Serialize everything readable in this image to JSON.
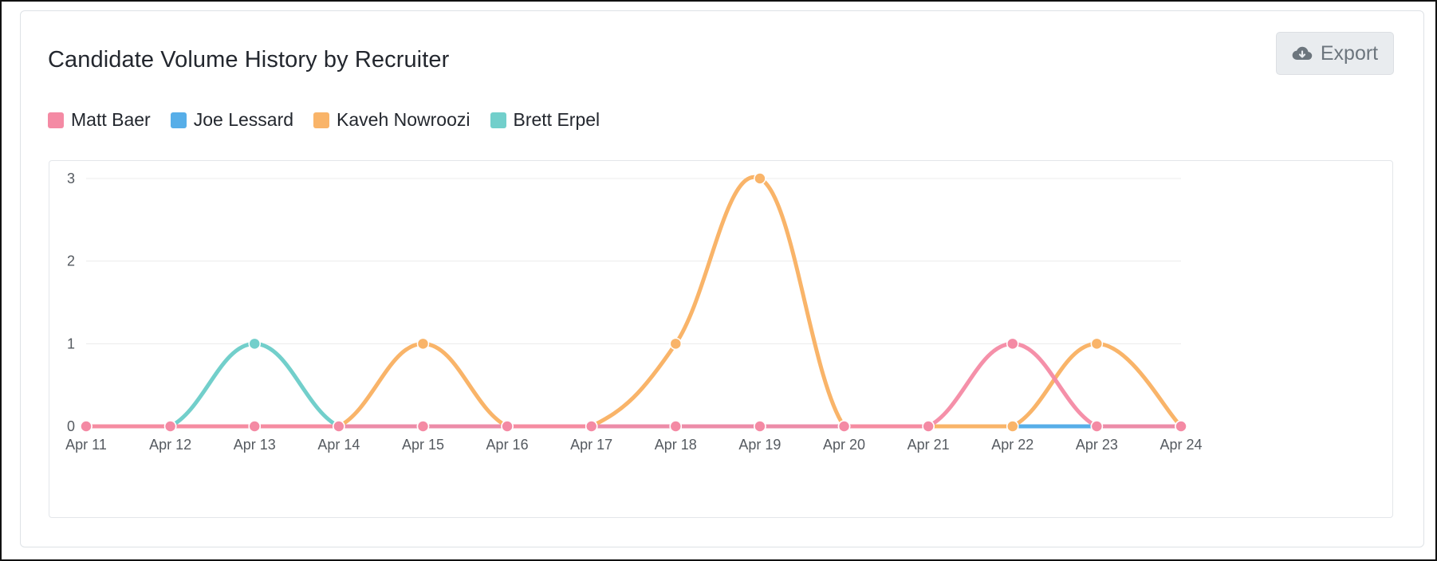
{
  "header": {
    "title": "Candidate Volume History by Recruiter",
    "export_label": "Export",
    "export_icon": "cloud-download-icon"
  },
  "colors": {
    "matt": "#f48aa4",
    "joe": "#57aee8",
    "kaveh": "#f9b469",
    "brett": "#72cfcb",
    "gridline": "#ececec",
    "button_bg": "#e9ecef"
  },
  "chart_data": {
    "type": "line",
    "smooth": true,
    "legend_position": "top-left",
    "grid": true,
    "categories": [
      "Apr 11",
      "Apr 12",
      "Apr 13",
      "Apr 14",
      "Apr 15",
      "Apr 16",
      "Apr 17",
      "Apr 18",
      "Apr 19",
      "Apr 20",
      "Apr 21",
      "Apr 22",
      "Apr 23",
      "Apr 24"
    ],
    "yticks": [
      "0",
      "1",
      "2",
      "3"
    ],
    "ylim": [
      0,
      3
    ],
    "series": [
      {
        "name": "Matt Baer",
        "color": "#f48aa4",
        "values": [
          0,
          0,
          0,
          0,
          0,
          0,
          0,
          0,
          0,
          0,
          0,
          1,
          0,
          0
        ]
      },
      {
        "name": "Joe Lessard",
        "color": "#57aee8",
        "values": [
          0,
          0,
          0,
          0,
          0,
          0,
          0,
          0,
          0,
          0,
          0,
          0,
          0,
          0
        ]
      },
      {
        "name": "Kaveh Nowroozi",
        "color": "#f9b469",
        "values": [
          0,
          0,
          0,
          0,
          1,
          0,
          0,
          1,
          3,
          0,
          0,
          0,
          1,
          0
        ]
      },
      {
        "name": "Brett Erpel",
        "color": "#72cfcb",
        "values": [
          0,
          0,
          1,
          0,
          0,
          0,
          0,
          0,
          0,
          0,
          0,
          0,
          0,
          0
        ]
      }
    ]
  }
}
